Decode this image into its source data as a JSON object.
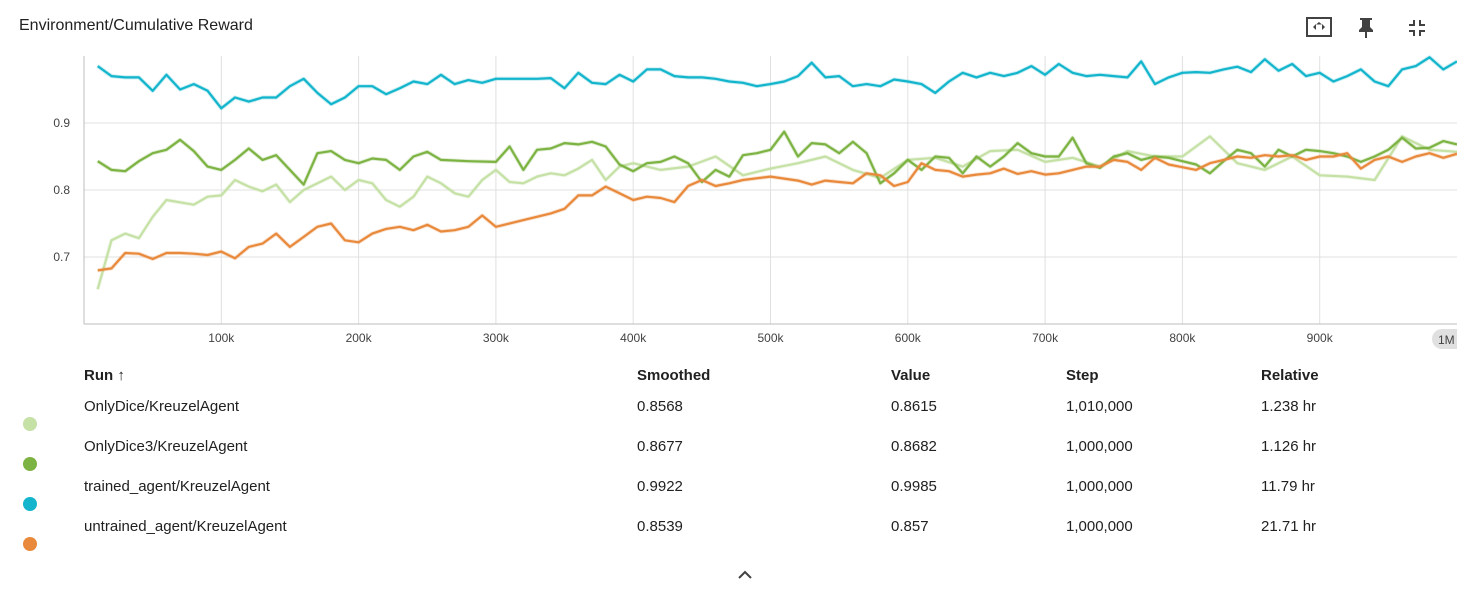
{
  "header": {
    "title": "Environment/Cumulative Reward"
  },
  "toolbar": {
    "icons": [
      "fit-domain-icon",
      "pin-icon",
      "collapse-icon"
    ]
  },
  "chart_data": {
    "type": "line",
    "title": "Environment/Cumulative Reward",
    "xlabel": "",
    "ylabel": "",
    "xlim": [
      0,
      1000000
    ],
    "ylim": [
      0.6,
      1.0
    ],
    "x_ticks": [
      100000,
      200000,
      300000,
      400000,
      500000,
      600000,
      700000,
      800000,
      900000
    ],
    "x_tick_labels": [
      "100k",
      "200k",
      "300k",
      "400k",
      "500k",
      "600k",
      "700k",
      "800k",
      "900k"
    ],
    "y_ticks": [
      0.7,
      0.8,
      0.9
    ],
    "y_tick_labels": [
      "0.7",
      "0.8",
      "0.9"
    ],
    "grid": true,
    "x_end_label": "1M",
    "series": [
      {
        "name": "OnlyDice/KreuzelAgent",
        "color": "#c5e1a5",
        "x": [
          10000,
          20000,
          30000,
          40000,
          50000,
          60000,
          80000,
          90000,
          100000,
          110000,
          120000,
          130000,
          140000,
          150000,
          160000,
          180000,
          190000,
          200000,
          210000,
          220000,
          230000,
          240000,
          250000,
          260000,
          270000,
          280000,
          290000,
          300000,
          310000,
          320000,
          330000,
          340000,
          350000,
          360000,
          370000,
          380000,
          390000,
          400000,
          420000,
          440000,
          460000,
          480000,
          500000,
          520000,
          540000,
          560000,
          580000,
          600000,
          620000,
          640000,
          660000,
          680000,
          700000,
          720000,
          740000,
          760000,
          780000,
          800000,
          820000,
          840000,
          860000,
          880000,
          900000,
          920000,
          940000,
          960000,
          980000,
          1000000
        ],
        "y": [
          0.652,
          0.725,
          0.735,
          0.728,
          0.76,
          0.785,
          0.778,
          0.79,
          0.792,
          0.815,
          0.805,
          0.798,
          0.808,
          0.782,
          0.8,
          0.82,
          0.8,
          0.815,
          0.81,
          0.785,
          0.775,
          0.79,
          0.82,
          0.81,
          0.795,
          0.79,
          0.815,
          0.83,
          0.812,
          0.81,
          0.82,
          0.825,
          0.822,
          0.832,
          0.845,
          0.815,
          0.835,
          0.84,
          0.83,
          0.835,
          0.85,
          0.822,
          0.832,
          0.84,
          0.85,
          0.83,
          0.818,
          0.845,
          0.848,
          0.835,
          0.858,
          0.86,
          0.842,
          0.848,
          0.835,
          0.858,
          0.85,
          0.85,
          0.88,
          0.84,
          0.83,
          0.85,
          0.822,
          0.82,
          0.815,
          0.88,
          0.86,
          0.857
        ]
      },
      {
        "name": "OnlyDice3/KreuzelAgent",
        "color": "#7cb342",
        "x": [
          10000,
          20000,
          30000,
          40000,
          50000,
          60000,
          70000,
          80000,
          90000,
          100000,
          110000,
          120000,
          130000,
          140000,
          150000,
          160000,
          170000,
          180000,
          190000,
          200000,
          210000,
          220000,
          230000,
          240000,
          250000,
          260000,
          280000,
          300000,
          310000,
          320000,
          330000,
          340000,
          350000,
          360000,
          370000,
          380000,
          390000,
          400000,
          410000,
          420000,
          430000,
          440000,
          450000,
          460000,
          470000,
          480000,
          490000,
          500000,
          510000,
          520000,
          530000,
          540000,
          550000,
          560000,
          570000,
          580000,
          590000,
          600000,
          610000,
          620000,
          630000,
          640000,
          650000,
          660000,
          670000,
          680000,
          690000,
          700000,
          710000,
          720000,
          730000,
          740000,
          750000,
          760000,
          770000,
          780000,
          790000,
          800000,
          810000,
          820000,
          830000,
          840000,
          850000,
          860000,
          870000,
          880000,
          890000,
          900000,
          910000,
          920000,
          930000,
          940000,
          950000,
          960000,
          970000,
          980000,
          990000,
          1000000
        ],
        "y": [
          0.843,
          0.83,
          0.828,
          0.843,
          0.855,
          0.86,
          0.875,
          0.858,
          0.835,
          0.83,
          0.845,
          0.862,
          0.845,
          0.852,
          0.83,
          0.808,
          0.855,
          0.858,
          0.845,
          0.84,
          0.847,
          0.845,
          0.83,
          0.85,
          0.857,
          0.845,
          0.843,
          0.842,
          0.865,
          0.83,
          0.86,
          0.862,
          0.87,
          0.868,
          0.872,
          0.865,
          0.838,
          0.828,
          0.84,
          0.842,
          0.85,
          0.84,
          0.812,
          0.83,
          0.82,
          0.852,
          0.855,
          0.86,
          0.887,
          0.85,
          0.87,
          0.868,
          0.855,
          0.872,
          0.855,
          0.81,
          0.825,
          0.845,
          0.83,
          0.85,
          0.848,
          0.825,
          0.85,
          0.835,
          0.85,
          0.87,
          0.855,
          0.85,
          0.85,
          0.878,
          0.84,
          0.833,
          0.85,
          0.855,
          0.845,
          0.85,
          0.848,
          0.843,
          0.838,
          0.825,
          0.843,
          0.86,
          0.855,
          0.835,
          0.86,
          0.85,
          0.86,
          0.858,
          0.855,
          0.85,
          0.842,
          0.85,
          0.86,
          0.878,
          0.862,
          0.863,
          0.873,
          0.868
        ]
      },
      {
        "name": "trained_agent/KreuzelAgent",
        "color": "#12b5cb",
        "x": [
          10000,
          20000,
          30000,
          40000,
          50000,
          60000,
          70000,
          80000,
          90000,
          100000,
          110000,
          120000,
          130000,
          140000,
          150000,
          160000,
          170000,
          180000,
          190000,
          200000,
          210000,
          220000,
          230000,
          240000,
          250000,
          260000,
          270000,
          280000,
          290000,
          300000,
          310000,
          320000,
          330000,
          340000,
          350000,
          360000,
          370000,
          380000,
          390000,
          400000,
          410000,
          420000,
          430000,
          440000,
          450000,
          460000,
          470000,
          480000,
          490000,
          500000,
          510000,
          520000,
          530000,
          540000,
          550000,
          560000,
          570000,
          580000,
          590000,
          600000,
          610000,
          620000,
          630000,
          640000,
          650000,
          660000,
          670000,
          680000,
          690000,
          700000,
          710000,
          720000,
          730000,
          740000,
          750000,
          760000,
          770000,
          780000,
          790000,
          800000,
          810000,
          820000,
          830000,
          840000,
          850000,
          860000,
          870000,
          880000,
          890000,
          900000,
          910000,
          920000,
          930000,
          940000,
          950000,
          960000,
          970000,
          980000,
          990000,
          1000000
        ],
        "y": [
          0.985,
          0.97,
          0.968,
          0.968,
          0.948,
          0.972,
          0.95,
          0.958,
          0.948,
          0.922,
          0.938,
          0.932,
          0.938,
          0.938,
          0.955,
          0.966,
          0.945,
          0.928,
          0.938,
          0.955,
          0.955,
          0.943,
          0.952,
          0.962,
          0.958,
          0.972,
          0.958,
          0.964,
          0.96,
          0.966,
          0.966,
          0.966,
          0.966,
          0.967,
          0.952,
          0.975,
          0.96,
          0.958,
          0.972,
          0.962,
          0.98,
          0.98,
          0.97,
          0.968,
          0.968,
          0.966,
          0.962,
          0.96,
          0.955,
          0.958,
          0.962,
          0.97,
          0.99,
          0.968,
          0.97,
          0.955,
          0.958,
          0.955,
          0.965,
          0.962,
          0.958,
          0.945,
          0.962,
          0.975,
          0.968,
          0.975,
          0.97,
          0.975,
          0.985,
          0.972,
          0.988,
          0.975,
          0.97,
          0.972,
          0.97,
          0.968,
          0.992,
          0.958,
          0.968,
          0.975,
          0.976,
          0.975,
          0.98,
          0.984,
          0.976,
          0.995,
          0.978,
          0.988,
          0.97,
          0.975,
          0.962,
          0.97,
          0.98,
          0.962,
          0.955,
          0.98,
          0.985,
          0.998,
          0.98,
          0.992
        ]
      },
      {
        "name": "untrained_agent/KreuzelAgent",
        "color": "#e8893b",
        "x": [
          10000,
          20000,
          30000,
          40000,
          50000,
          60000,
          70000,
          80000,
          90000,
          100000,
          110000,
          120000,
          130000,
          140000,
          150000,
          160000,
          170000,
          180000,
          190000,
          200000,
          210000,
          220000,
          230000,
          240000,
          250000,
          260000,
          270000,
          280000,
          290000,
          300000,
          320000,
          340000,
          350000,
          360000,
          370000,
          380000,
          390000,
          400000,
          410000,
          420000,
          430000,
          440000,
          450000,
          460000,
          470000,
          480000,
          500000,
          520000,
          530000,
          540000,
          550000,
          560000,
          570000,
          580000,
          590000,
          600000,
          610000,
          620000,
          630000,
          640000,
          650000,
          660000,
          670000,
          680000,
          690000,
          700000,
          710000,
          720000,
          730000,
          740000,
          750000,
          760000,
          770000,
          780000,
          790000,
          800000,
          810000,
          820000,
          830000,
          840000,
          850000,
          860000,
          870000,
          880000,
          890000,
          900000,
          910000,
          920000,
          930000,
          940000,
          950000,
          960000,
          970000,
          980000,
          990000,
          1000000
        ],
        "y": [
          0.68,
          0.683,
          0.706,
          0.705,
          0.697,
          0.706,
          0.706,
          0.705,
          0.703,
          0.708,
          0.698,
          0.715,
          0.72,
          0.735,
          0.715,
          0.73,
          0.745,
          0.75,
          0.725,
          0.722,
          0.735,
          0.742,
          0.745,
          0.74,
          0.748,
          0.738,
          0.74,
          0.745,
          0.762,
          0.745,
          0.755,
          0.765,
          0.772,
          0.792,
          0.792,
          0.805,
          0.795,
          0.785,
          0.79,
          0.788,
          0.782,
          0.806,
          0.815,
          0.806,
          0.81,
          0.815,
          0.82,
          0.814,
          0.808,
          0.814,
          0.812,
          0.81,
          0.825,
          0.822,
          0.806,
          0.812,
          0.84,
          0.83,
          0.828,
          0.82,
          0.823,
          0.825,
          0.832,
          0.824,
          0.828,
          0.823,
          0.825,
          0.83,
          0.835,
          0.835,
          0.845,
          0.842,
          0.83,
          0.848,
          0.838,
          0.834,
          0.83,
          0.84,
          0.845,
          0.85,
          0.848,
          0.852,
          0.85,
          0.852,
          0.845,
          0.85,
          0.85,
          0.855,
          0.832,
          0.845,
          0.85,
          0.842,
          0.85,
          0.855,
          0.848,
          0.854
        ]
      }
    ]
  },
  "table": {
    "headers": {
      "run": "Run ↑",
      "smoothed": "Smoothed",
      "value": "Value",
      "step": "Step",
      "relative": "Relative"
    },
    "rows": [
      {
        "run": "OnlyDice/KreuzelAgent",
        "smoothed": "0.8568",
        "value": "0.8615",
        "step": "1,010,000",
        "relative": "1.238 hr",
        "color": "#c5e1a5"
      },
      {
        "run": "OnlyDice3/KreuzelAgent",
        "smoothed": "0.8677",
        "value": "0.8682",
        "step": "1,000,000",
        "relative": "1.126 hr",
        "color": "#7cb342"
      },
      {
        "run": "trained_agent/KreuzelAgent",
        "smoothed": "0.9922",
        "value": "0.9985",
        "step": "1,000,000",
        "relative": "11.79 hr",
        "color": "#12b5cb"
      },
      {
        "run": "untrained_agent/KreuzelAgent",
        "smoothed": "0.8539",
        "value": "0.857",
        "step": "1,000,000",
        "relative": "21.71 hr",
        "color": "#e8893b"
      }
    ]
  }
}
